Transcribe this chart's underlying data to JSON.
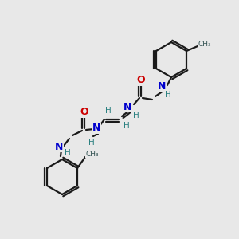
{
  "background_color": "#e8e8e8",
  "figsize": [
    3.0,
    3.0
  ],
  "dpi": 100,
  "colors": {
    "bond": "#1a1a1a",
    "N": "#0000cd",
    "O": "#cc0000",
    "H": "#2a8080",
    "C": "#2f4f4f"
  },
  "bond_lw": 1.6,
  "xlim": [
    0,
    300
  ],
  "ylim": [
    0,
    300
  ]
}
